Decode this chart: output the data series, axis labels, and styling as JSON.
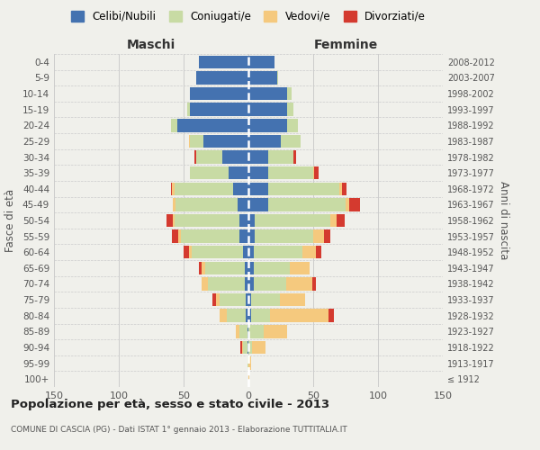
{
  "age_groups": [
    "100+",
    "95-99",
    "90-94",
    "85-89",
    "80-84",
    "75-79",
    "70-74",
    "65-69",
    "60-64",
    "55-59",
    "50-54",
    "45-49",
    "40-44",
    "35-39",
    "30-34",
    "25-29",
    "20-24",
    "15-19",
    "10-14",
    "5-9",
    "0-4"
  ],
  "birth_years": [
    "≤ 1912",
    "1913-1917",
    "1918-1922",
    "1923-1927",
    "1928-1932",
    "1933-1937",
    "1938-1942",
    "1943-1947",
    "1948-1952",
    "1953-1957",
    "1958-1962",
    "1963-1967",
    "1968-1972",
    "1973-1977",
    "1978-1982",
    "1983-1987",
    "1988-1992",
    "1993-1997",
    "1998-2002",
    "2003-2007",
    "2008-2012"
  ],
  "maschi": {
    "celibe": [
      0,
      0,
      1,
      1,
      2,
      2,
      3,
      3,
      4,
      7,
      7,
      8,
      12,
      15,
      20,
      35,
      55,
      45,
      45,
      40,
      38
    ],
    "coniugato": [
      0,
      1,
      3,
      6,
      15,
      20,
      28,
      30,
      40,
      45,
      50,
      48,
      45,
      30,
      20,
      10,
      5,
      2,
      0,
      0,
      0
    ],
    "vedovo": [
      0,
      0,
      1,
      3,
      5,
      3,
      5,
      3,
      2,
      2,
      1,
      2,
      2,
      0,
      0,
      1,
      0,
      0,
      0,
      0,
      0
    ],
    "divorziato": [
      0,
      0,
      1,
      0,
      0,
      3,
      0,
      2,
      4,
      5,
      5,
      0,
      1,
      0,
      2,
      0,
      0,
      0,
      0,
      0,
      0
    ]
  },
  "femmine": {
    "celibe": [
      0,
      0,
      0,
      0,
      2,
      2,
      4,
      4,
      4,
      5,
      5,
      15,
      15,
      15,
      15,
      25,
      30,
      30,
      30,
      22,
      20
    ],
    "coniugato": [
      0,
      0,
      3,
      12,
      15,
      22,
      25,
      28,
      38,
      45,
      58,
      60,
      55,
      35,
      20,
      15,
      8,
      5,
      3,
      1,
      0
    ],
    "vedovo": [
      1,
      2,
      10,
      18,
      45,
      20,
      20,
      15,
      10,
      8,
      5,
      3,
      2,
      1,
      0,
      0,
      0,
      0,
      0,
      0,
      0
    ],
    "divorziato": [
      0,
      0,
      0,
      0,
      4,
      0,
      3,
      0,
      4,
      5,
      6,
      8,
      4,
      3,
      2,
      0,
      0,
      0,
      0,
      0,
      0
    ]
  },
  "colors": {
    "celibe": "#4472b0",
    "coniugato": "#c8dba4",
    "vedovo": "#f5c97e",
    "divorziato": "#d43a2f"
  },
  "xlim": 150,
  "title": "Popolazione per età, sesso e stato civile - 2013",
  "subtitle": "COMUNE DI CASCIA (PG) - Dati ISTAT 1° gennaio 2013 - Elaborazione TUTTITALIA.IT",
  "ylabel": "Fasce di età",
  "right_label": "Anni di nascita",
  "legend_labels": [
    "Celibi/Nubili",
    "Coniugati/e",
    "Vedovi/e",
    "Divorziati/e"
  ],
  "bg_color": "#f0f0eb",
  "grid_color": "#cccccc"
}
